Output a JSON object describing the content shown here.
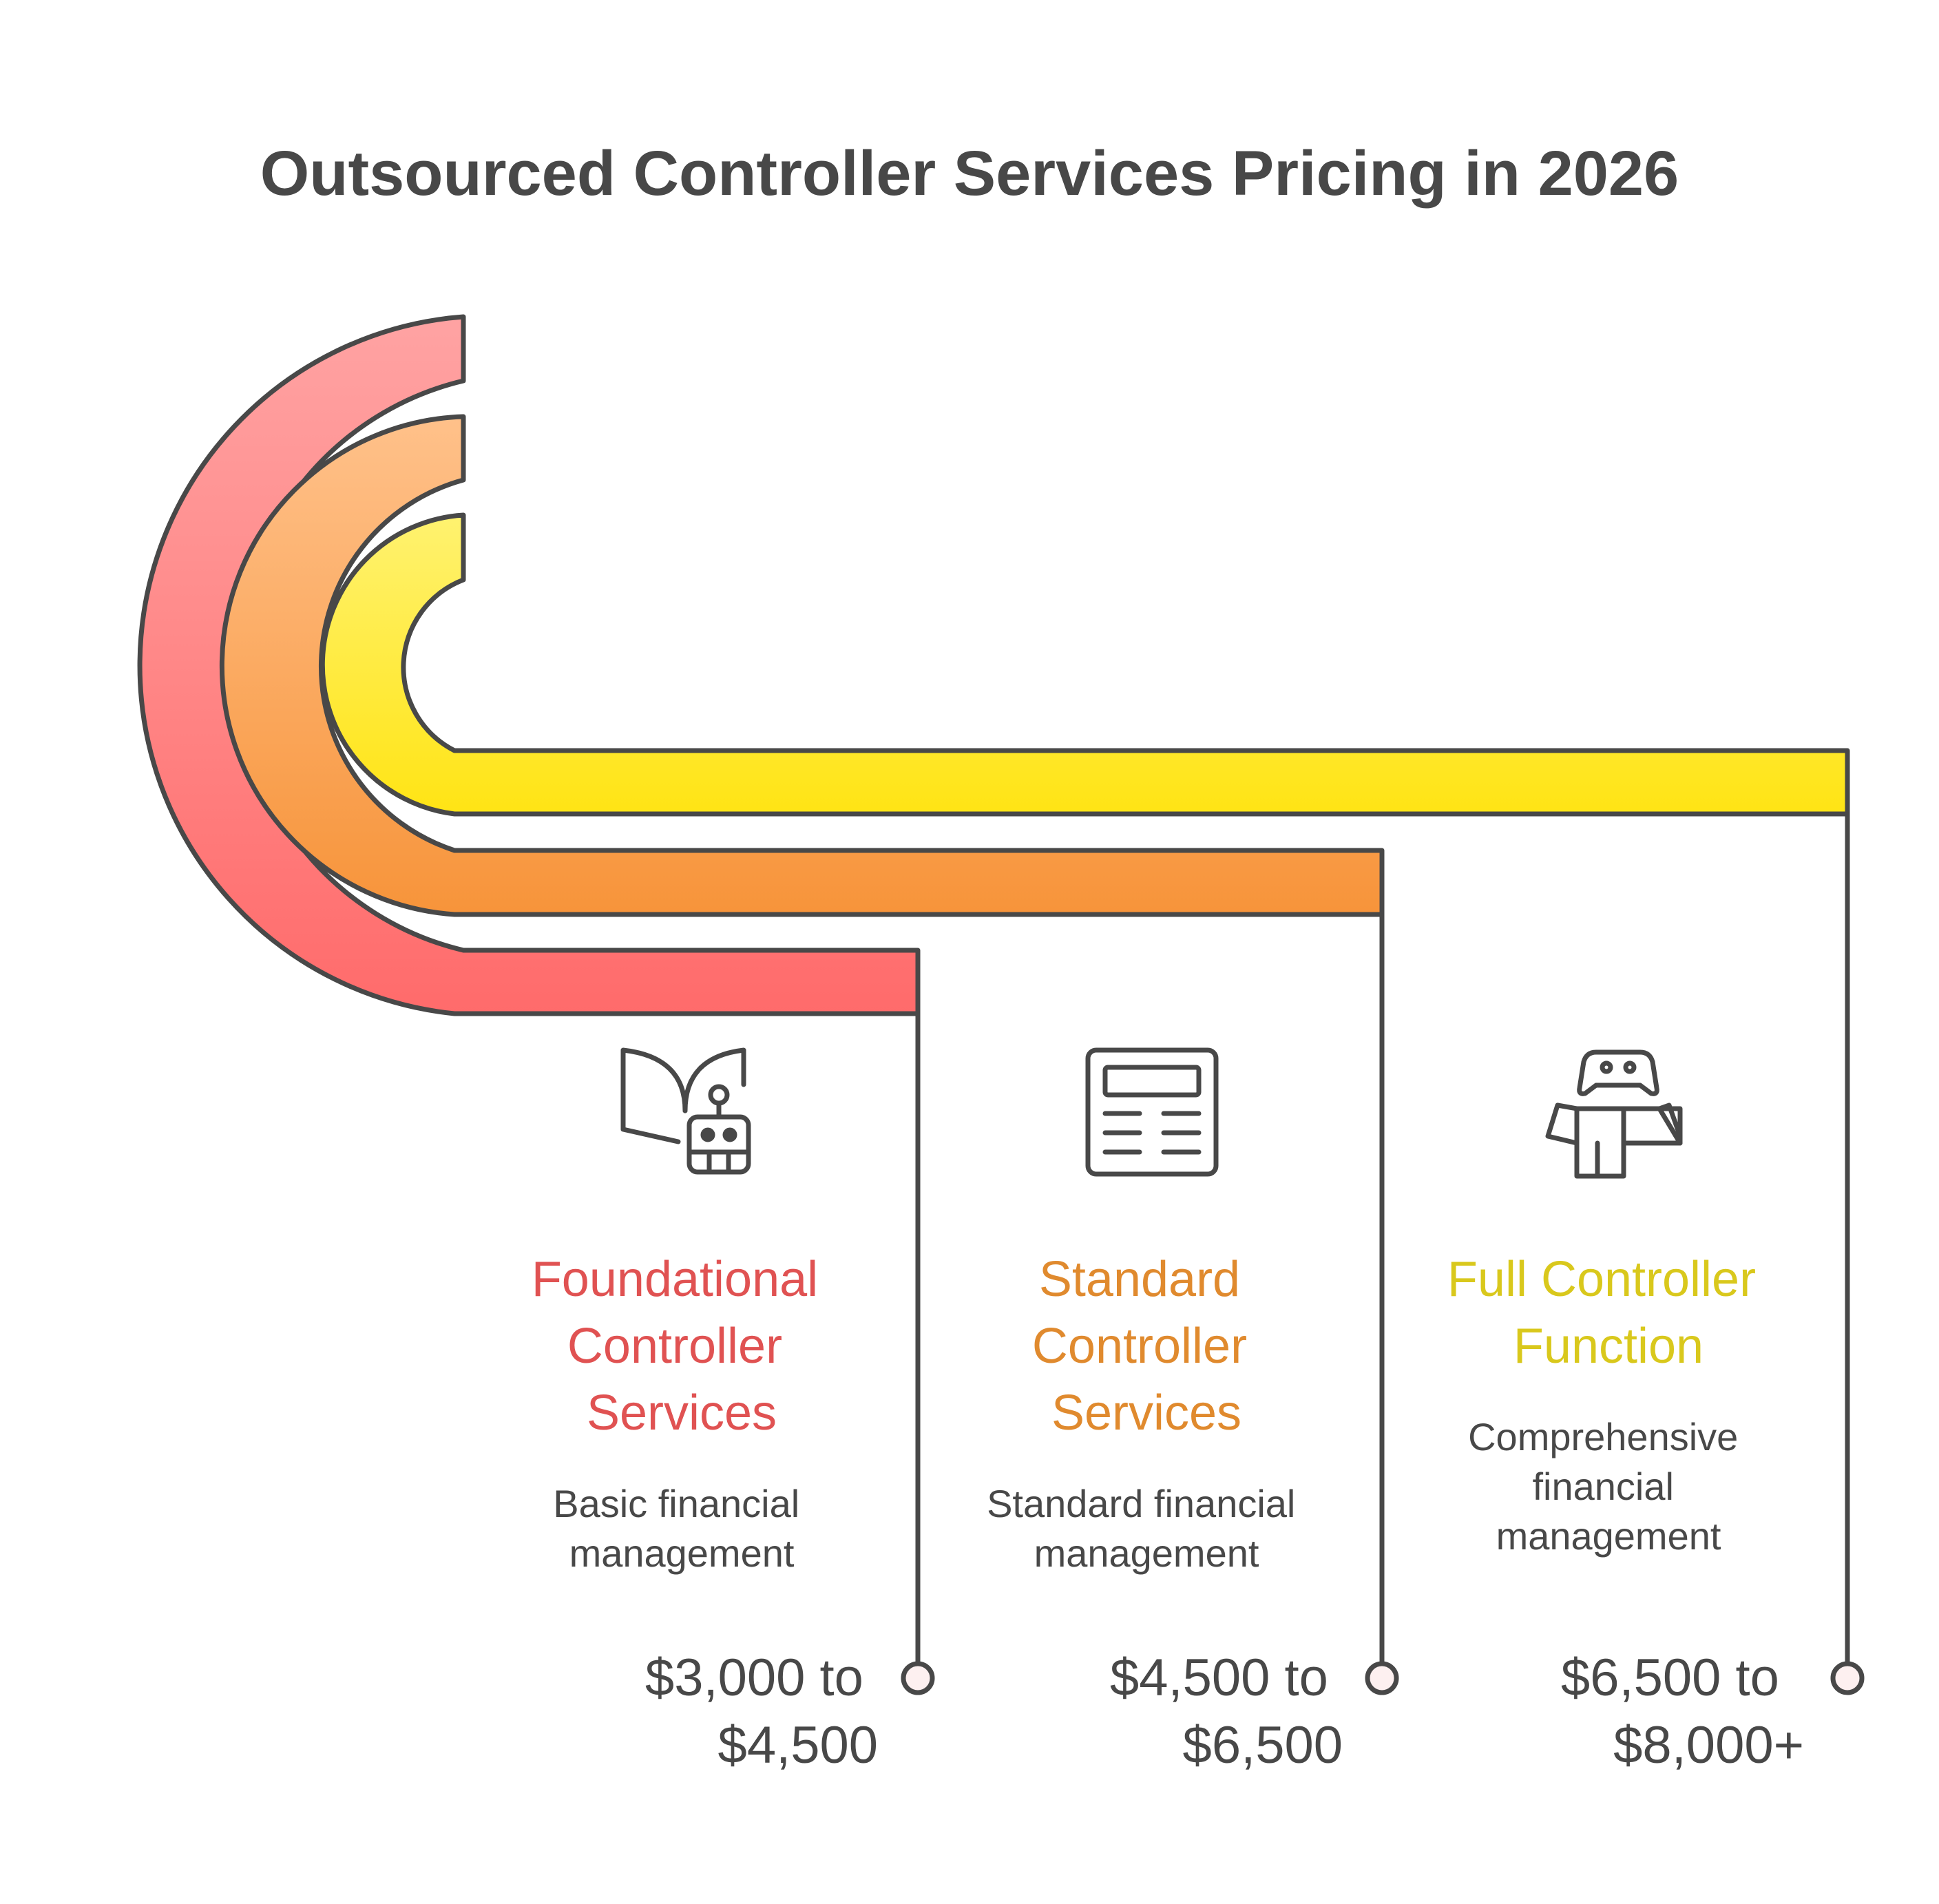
{
  "title": "Outsourced Controller Services Pricing in 2026",
  "tiers": [
    {
      "name": "Foundational Controller Services",
      "name_lines": [
        "Foundational",
        "Controller",
        "Services"
      ],
      "description_lines": [
        "Basic financial",
        "management"
      ],
      "price_lines": [
        "$3,000 to",
        "$4,500"
      ],
      "icon": "book-robot-icon",
      "color": "#e05252",
      "band_gradient": [
        "#ffa3a3",
        "#ff6b6b"
      ]
    },
    {
      "name": "Standard Controller Services",
      "name_lines": [
        "Standard",
        "Controller",
        "Services"
      ],
      "description_lines": [
        "Standard financial",
        "management"
      ],
      "price_lines": [
        "$4,500 to",
        "$6,500"
      ],
      "icon": "newspaper-icon",
      "color": "#e08a2e",
      "band_gradient": [
        "#ffc18a",
        "#f7943a"
      ]
    },
    {
      "name": "Full Controller Function",
      "name_lines": [
        "Full Controller",
        "Function"
      ],
      "description_lines": [
        "Comprehensive",
        "financial",
        "management"
      ],
      "price_lines": [
        "$6,500 to",
        "$8,000+"
      ],
      "icon": "gamepad-box-icon",
      "color": "#d9c81c",
      "band_gradient": [
        "#fff270",
        "#ffe414"
      ]
    }
  ]
}
